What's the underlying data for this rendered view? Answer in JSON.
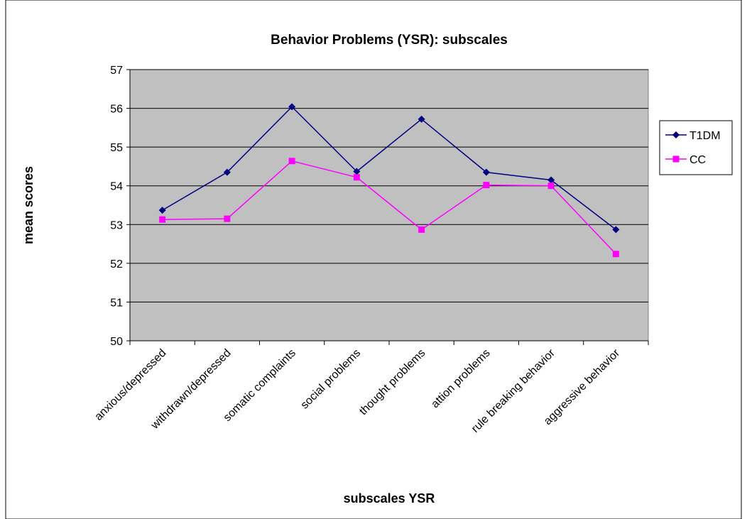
{
  "chart_data": {
    "type": "line",
    "title": "Behavior Problems (YSR): subscales",
    "x_label": "subscales YSR",
    "y_label": "mean scores",
    "categories": [
      "anxious/depressed",
      "withdrawn/depressed",
      "somatic complaints",
      "social problems",
      "thought problems",
      "attion problems",
      "rule breaking behavior",
      "aggressive behavior"
    ],
    "series": [
      {
        "name": "T1DM",
        "color": "#000080",
        "marker": "diamond",
        "values": [
          53.37,
          54.35,
          56.04,
          54.37,
          55.72,
          54.35,
          54.15,
          52.87
        ]
      },
      {
        "name": "CC",
        "color": "#ff00ff",
        "marker": "square",
        "values": [
          53.13,
          53.15,
          54.64,
          54.22,
          52.87,
          54.02,
          54.0,
          52.24
        ]
      }
    ],
    "ylim": [
      50,
      57
    ],
    "yticks": [
      50,
      51,
      52,
      53,
      54,
      55,
      56,
      57
    ],
    "grid": true,
    "legend": "right"
  }
}
